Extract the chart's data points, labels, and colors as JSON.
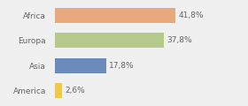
{
  "categories": [
    "Africa",
    "Europa",
    "Asia",
    "America"
  ],
  "values": [
    41.8,
    37.8,
    17.8,
    2.6
  ],
  "labels": [
    "41,8%",
    "37,8%",
    "17,8%",
    "2,6%"
  ],
  "colors": [
    "#e8a97e",
    "#b5c98a",
    "#6b8cba",
    "#f0c84a"
  ],
  "background_color": "#f0f0f0",
  "xlim": [
    0,
    65
  ],
  "label_fontsize": 6.5,
  "tick_fontsize": 6.5,
  "bar_height": 0.6,
  "figsize": [
    2.8,
    1.2
  ],
  "dpi": 100
}
